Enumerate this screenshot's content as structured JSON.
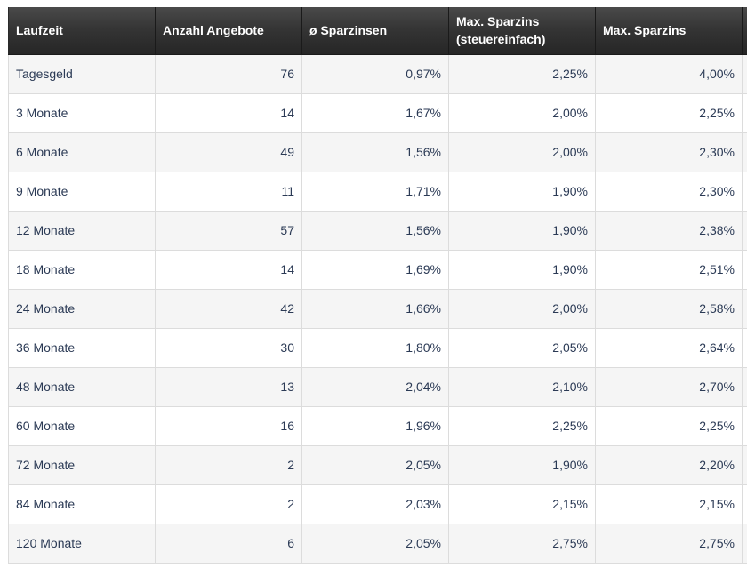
{
  "table": {
    "headers": [
      "Laufzeit",
      "Anzahl Angebote",
      "ø Sparzinsen",
      "Max. Sparzins (steuereinfach)",
      "Max. Sparzins"
    ],
    "rows": [
      [
        "Tagesgeld",
        "76",
        "0,97%",
        "2,25%",
        "4,00%"
      ],
      [
        "3 Monate",
        "14",
        "1,67%",
        "2,00%",
        "2,25%"
      ],
      [
        "6 Monate",
        "49",
        "1,56%",
        "2,00%",
        "2,30%"
      ],
      [
        "9 Monate",
        "11",
        "1,71%",
        "1,90%",
        "2,30%"
      ],
      [
        "12 Monate",
        "57",
        "1,56%",
        "1,90%",
        "2,38%"
      ],
      [
        "18 Monate",
        "14",
        "1,69%",
        "1,90%",
        "2,51%"
      ],
      [
        "24 Monate",
        "42",
        "1,66%",
        "2,00%",
        "2,58%"
      ],
      [
        "36 Monate",
        "30",
        "1,80%",
        "2,05%",
        "2,64%"
      ],
      [
        "48 Monate",
        "13",
        "2,04%",
        "2,10%",
        "2,70%"
      ],
      [
        "60 Monate",
        "16",
        "1,96%",
        "2,25%",
        "2,25%"
      ],
      [
        "72 Monate",
        "2",
        "2,05%",
        "1,90%",
        "2,20%"
      ],
      [
        "84 Monate",
        "2",
        "2,03%",
        "2,15%",
        "2,15%"
      ],
      [
        "120 Monate",
        "6",
        "2,05%",
        "2,75%",
        "2,75%"
      ]
    ]
  }
}
